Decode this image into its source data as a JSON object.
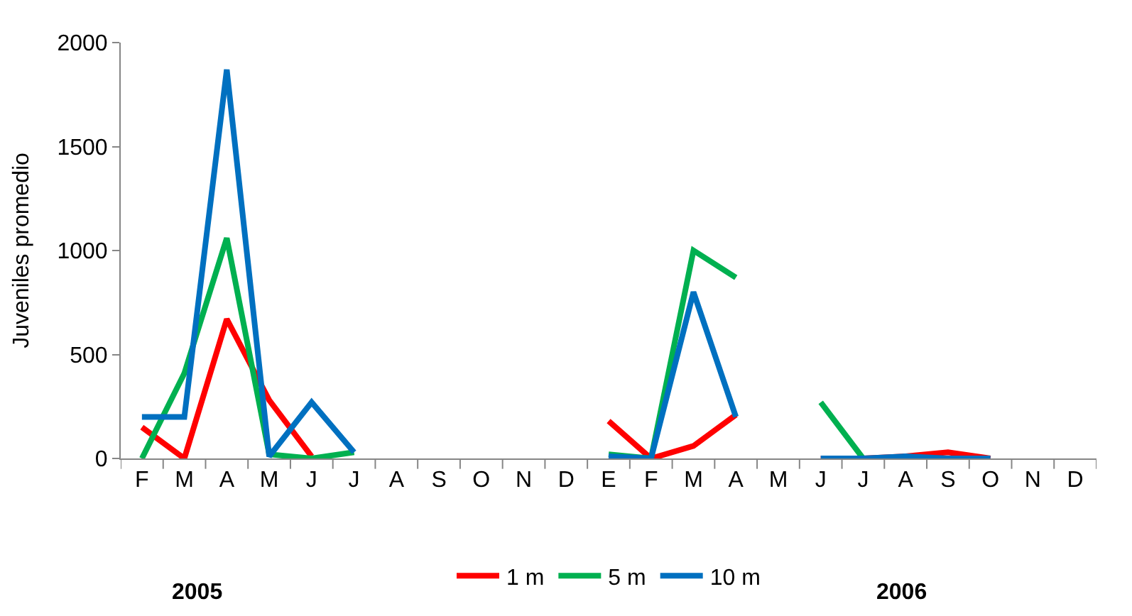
{
  "chart_data": {
    "type": "line",
    "ylabel": "Juveniles promedio",
    "categories": [
      "F",
      "M",
      "A",
      "M",
      "J",
      "J",
      "A",
      "S",
      "O",
      "N",
      "D",
      "E",
      "F",
      "M",
      "A",
      "M",
      "J",
      "J",
      "A",
      "S",
      "O",
      "N",
      "D"
    ],
    "series": [
      {
        "name": "1 m",
        "color": "#ff0000",
        "values": [
          150,
          0,
          670,
          280,
          10,
          null,
          null,
          null,
          null,
          null,
          null,
          180,
          0,
          60,
          210,
          null,
          0,
          0,
          10,
          30,
          0,
          null,
          null
        ]
      },
      {
        "name": "5 m",
        "color": "#00b050",
        "values": [
          0,
          410,
          1060,
          20,
          0,
          30,
          null,
          null,
          null,
          null,
          null,
          20,
          0,
          1000,
          870,
          null,
          270,
          0,
          0,
          null,
          null,
          null,
          null
        ]
      },
      {
        "name": "10 m",
        "color": "#0070c0",
        "values": [
          200,
          200,
          1870,
          10,
          270,
          30,
          null,
          null,
          null,
          null,
          null,
          10,
          0,
          800,
          200,
          null,
          0,
          0,
          10,
          0,
          0,
          null,
          null
        ]
      }
    ],
    "ylim": [
      0,
      2000
    ],
    "yticks": [
      0,
      500,
      1000,
      1500,
      2000
    ],
    "legend": "bottom",
    "marker": "none",
    "line_style": "solid",
    "annotations": [
      "2005",
      "2006"
    ]
  }
}
